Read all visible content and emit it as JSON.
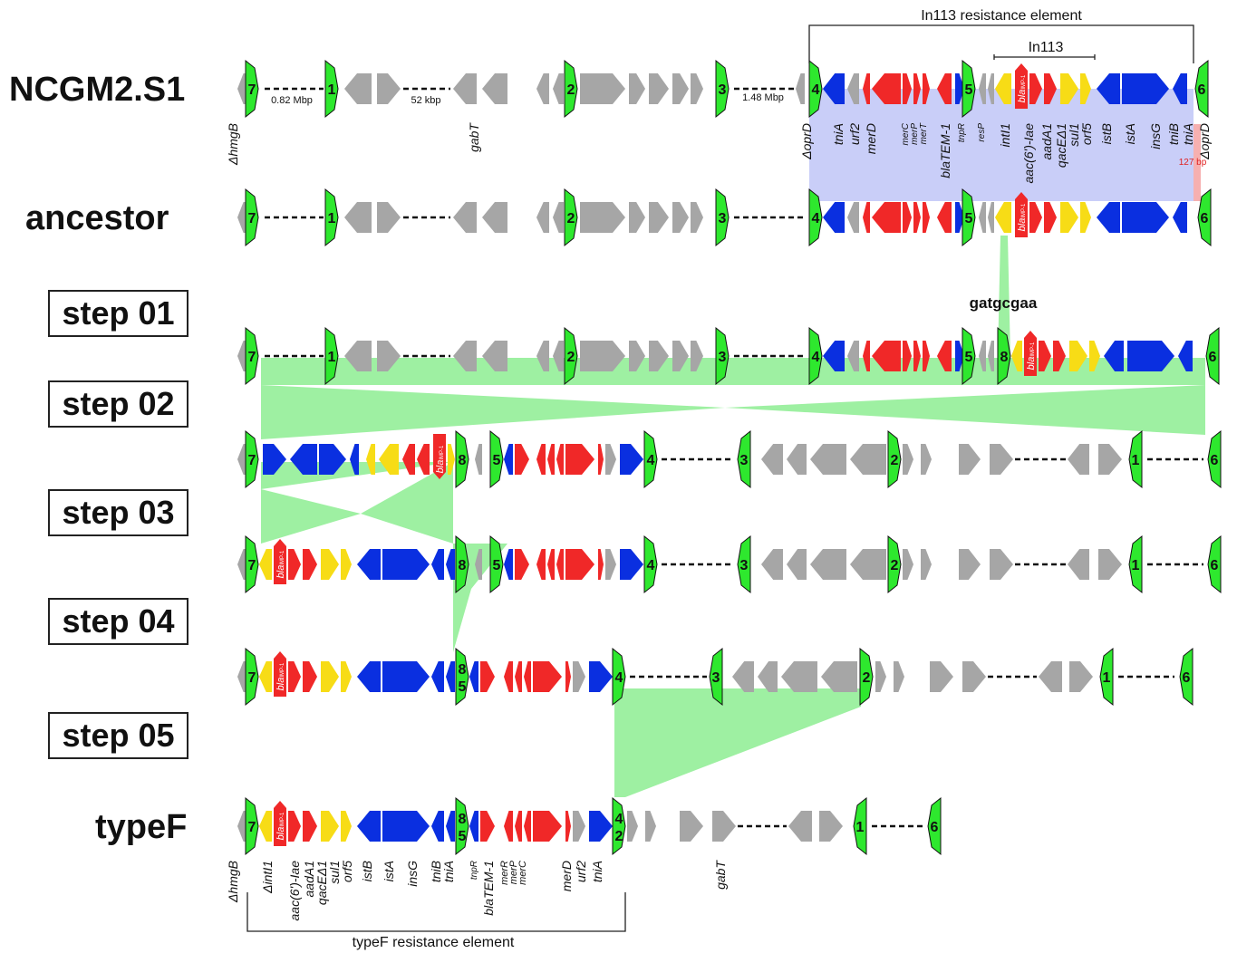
{
  "rows": {
    "ncgm": "NCGM2.S1",
    "ancestor": "ancestor",
    "step01": "step 01",
    "step02": "step 02",
    "step03": "step 03",
    "step04": "step 04",
    "step05": "step 05",
    "typef": "typeF"
  },
  "brackets": {
    "in113_element": "In113 resistance element",
    "in113": "In113",
    "typef_element": "typeF resistance element"
  },
  "distances": {
    "d1": "0.82 Mbp",
    "d2": "52 kbp",
    "d3": "1.48 Mbp",
    "d4": "127 bp"
  },
  "motif": "gatgcgaa",
  "genes_top": [
    "ΔhmgB",
    "gabT",
    "ΔoprD",
    "tniA",
    "urf2",
    "merD",
    "merC",
    "merP",
    "merT",
    "blaTEM-1",
    "tnpR",
    "resP",
    "intI1",
    "aac(6')-Iae",
    "aadA1",
    "qacEΔ1",
    "sul1",
    "orf5",
    "istB",
    "istA",
    "insG",
    "tniB",
    "tniA",
    "ΔoprD"
  ],
  "genes_bottom": [
    "ΔhmgB",
    "ΔintI1",
    "aac(6')-Iae",
    "aadA1",
    "qacEΔ1",
    "sul1",
    "orf5",
    "istB",
    "istA",
    "insG",
    "tniB",
    "tniA",
    "tnpR",
    "blaTEM-1",
    "merR",
    "merP",
    "merC",
    "merD",
    "urf2",
    "tniA",
    "gabT"
  ],
  "bla_label": "bla",
  "bla_sub": "IMP-1",
  "colors": {
    "gray": "#a6a6a6",
    "blue": "#0a2fe0",
    "red": "#f02828",
    "yellow": "#f7dc16",
    "green_marker": "#2ee82e",
    "highlight_green": "#9ef0a2",
    "highlight_blue": "#c9cef8",
    "highlight_red": "#f6b0b0"
  }
}
